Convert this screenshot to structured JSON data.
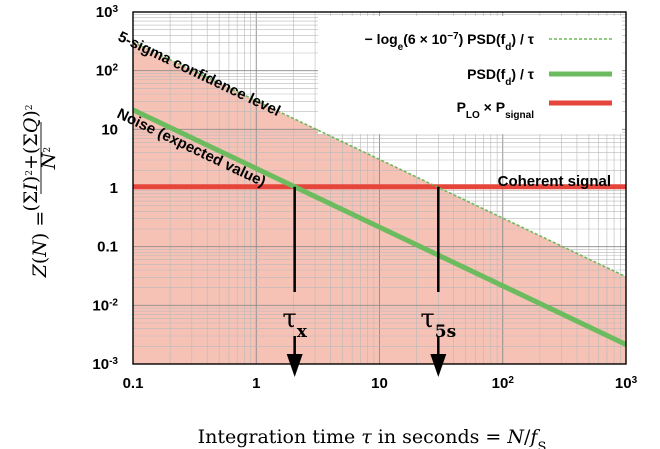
{
  "chart_data": {
    "type": "line",
    "x_scale": "log",
    "y_scale": "log",
    "xlim": [
      0.1,
      1000
    ],
    "ylim": [
      0.001,
      1000
    ],
    "x_ticks": [
      {
        "value": 0.1,
        "base": "0.1"
      },
      {
        "value": 1,
        "base": "1"
      },
      {
        "value": 10,
        "base": "10"
      },
      {
        "value": 100,
        "base": "10",
        "exp": "2"
      },
      {
        "value": 1000,
        "base": "10",
        "exp": "3"
      }
    ],
    "y_ticks": [
      {
        "value": 0.001,
        "base": "10",
        "exp": "-3"
      },
      {
        "value": 0.01,
        "base": "10",
        "exp": "-2"
      },
      {
        "value": 0.1,
        "base": "0.1"
      },
      {
        "value": 1,
        "base": "1"
      },
      {
        "value": 10,
        "base": "10"
      },
      {
        "value": 100,
        "base": "10",
        "exp": "2"
      },
      {
        "value": 1000,
        "base": "10",
        "exp": "3"
      }
    ],
    "xlabel": "Integration time τ in seconds = N/f_S",
    "ylabel": "Z(N) = ((ΣI)² + (ΣQ)²) / N²",
    "grid": true,
    "legend_position": "top-right",
    "series": [
      {
        "name": "− log_e(6 × 10^−7) PSD(f_d) / τ",
        "style": "dashed",
        "color": "#6fb85c",
        "x": [
          0.1,
          1000
        ],
        "y": [
          306.6,
          0.0307
        ]
      },
      {
        "name": "PSD(f_d) / τ",
        "style": "solid",
        "color": "#6cbb5e",
        "x": [
          0.1,
          1000
        ],
        "y": [
          21.5,
          0.00215
        ]
      },
      {
        "name": "P_LO × P_signal",
        "style": "solid",
        "color": "#e5453a",
        "x": [
          0.1,
          1000
        ],
        "y": [
          1.05,
          1.05
        ]
      }
    ],
    "fill_color": "#f7c2b6",
    "annotations": [
      {
        "text": "5-sigma confidence level"
      },
      {
        "text": "Noise (expected value)"
      },
      {
        "text": "Coherent signal"
      }
    ],
    "markers": [
      {
        "label": "τ",
        "subscript": "x",
        "x": 2.05
      },
      {
        "label": "τ",
        "subscript": "5s",
        "x": 30
      }
    ]
  }
}
